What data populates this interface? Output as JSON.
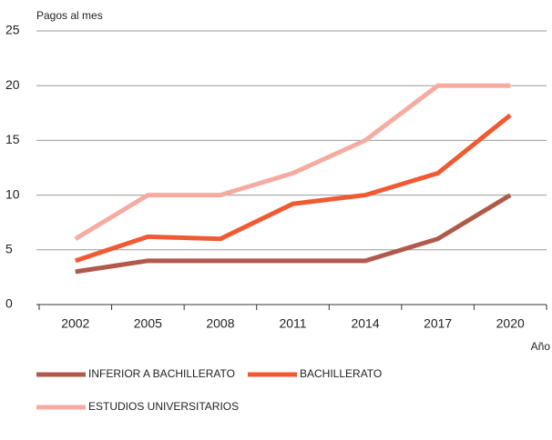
{
  "chart_data": {
    "type": "line",
    "ylabel": "Pagos al mes",
    "xlabel": "Año",
    "categories": [
      "2002",
      "2005",
      "2008",
      "2011",
      "2014",
      "2017",
      "2020"
    ],
    "series": [
      {
        "name": "INFERIOR A BACHILLERATO",
        "color": "#b05a4b",
        "values": [
          3,
          4,
          4,
          4,
          4,
          6,
          10
        ]
      },
      {
        "name": "BACHILLERATO",
        "color": "#f05a32",
        "values": [
          4,
          6.2,
          6,
          9.2,
          10,
          12,
          17.3
        ]
      },
      {
        "name": "ESTUDIOS UNIVERSITARIOS",
        "color": "#f5aba1",
        "values": [
          6,
          10,
          10,
          12,
          15,
          20,
          20
        ]
      }
    ],
    "ylim": [
      0,
      25
    ],
    "yticks": [
      0,
      5,
      10,
      15,
      20,
      25
    ],
    "grid": true
  }
}
